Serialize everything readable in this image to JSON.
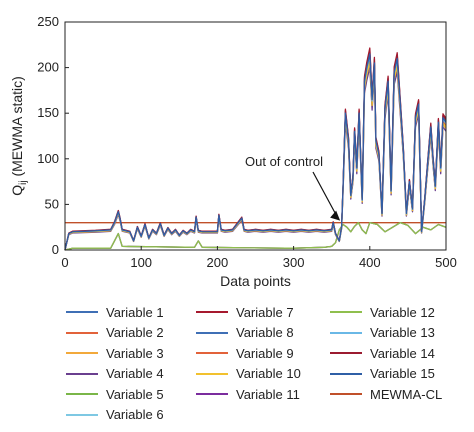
{
  "chart_data": {
    "type": "line",
    "ylabel_main": "Q",
    "ylabel_sub": "ij",
    "ylabel_rest": " (MEWMA static)",
    "xlabel": "Data points",
    "xlim": [
      0,
      500
    ],
    "ylim": [
      0,
      250
    ],
    "xticks": [
      0,
      100,
      200,
      300,
      400,
      500
    ],
    "yticks": [
      0,
      50,
      100,
      150,
      200,
      250
    ],
    "grid": false,
    "legend_placement": "below",
    "annotation": {
      "text": "Out of control",
      "x": 365,
      "y": 30
    },
    "control_limit": {
      "name": "MEWMA-CL",
      "value": 30,
      "color": "#c0502a"
    },
    "high_profile_x": [
      0,
      5,
      10,
      40,
      60,
      65,
      70,
      72,
      75,
      85,
      90,
      95,
      100,
      105,
      110,
      115,
      120,
      125,
      130,
      135,
      140,
      145,
      150,
      155,
      160,
      165,
      170,
      172,
      175,
      180,
      200,
      202,
      205,
      210,
      220,
      232,
      235,
      240,
      250,
      260,
      270,
      280,
      290,
      300,
      310,
      320,
      330,
      340,
      350,
      352,
      355,
      360,
      363,
      365,
      368,
      372,
      375,
      378,
      380,
      383,
      386,
      390,
      393,
      396,
      400,
      403,
      406,
      408,
      412,
      416,
      420,
      424,
      428,
      432,
      436,
      440,
      444,
      448,
      452,
      456,
      460,
      464,
      468,
      472,
      476,
      480,
      483,
      486,
      490,
      493,
      496,
      500
    ],
    "high_profile_y": [
      0,
      18,
      20,
      21,
      22,
      30,
      42,
      35,
      22,
      20,
      10,
      25,
      15,
      28,
      13,
      22,
      18,
      29,
      16,
      24,
      18,
      22,
      16,
      21,
      18,
      22,
      20,
      36,
      21,
      20,
      20,
      38,
      22,
      21,
      22,
      35,
      22,
      21,
      22,
      21,
      22,
      21,
      22,
      21,
      22,
      21,
      22,
      21,
      22,
      30,
      18,
      10,
      25,
      70,
      150,
      120,
      60,
      80,
      130,
      90,
      150,
      55,
      185,
      200,
      215,
      165,
      205,
      120,
      105,
      40,
      155,
      185,
      65,
      195,
      210,
      160,
      110,
      40,
      75,
      45,
      145,
      160,
      20,
      55,
      95,
      135,
      100,
      70,
      140,
      90,
      145,
      140
    ],
    "series": [
      {
        "name": "Variable 1",
        "color": "#3f6fb5",
        "scale": 1.0,
        "offset": 0,
        "low": false
      },
      {
        "name": "Variable 2",
        "color": "#e2623a",
        "scale": 0.97,
        "offset": 0,
        "low": false
      },
      {
        "name": "Variable 3",
        "color": "#f2a93b",
        "scale": 0.95,
        "offset": 0,
        "low": false
      },
      {
        "name": "Variable 4",
        "color": "#6a3f8f",
        "scale": 0.93,
        "offset": 0,
        "low": false
      },
      {
        "name": "Variable 5",
        "color": "#7ab648",
        "scale": 1.0,
        "offset": 0,
        "low": true
      },
      {
        "name": "Variable 6",
        "color": "#7ec8e3",
        "scale": 0.99,
        "offset": 0,
        "low": false
      },
      {
        "name": "Variable 7",
        "color": "#a6192e",
        "scale": 1.03,
        "offset": 0,
        "low": false
      },
      {
        "name": "Variable 8",
        "color": "#3f6fb5",
        "scale": 1.01,
        "offset": 0,
        "low": false
      },
      {
        "name": "Variable 9",
        "color": "#e2623a",
        "scale": 0.98,
        "offset": 0,
        "low": false
      },
      {
        "name": "Variable 10",
        "color": "#f2c12e",
        "scale": 0.96,
        "offset": 0,
        "low": false
      },
      {
        "name": "Variable 11",
        "color": "#7b2c9e",
        "scale": 1.0,
        "offset": 0,
        "low": true
      },
      {
        "name": "Variable 12",
        "color": "#8fbf4d",
        "scale": 1.0,
        "offset": 0,
        "low": true
      },
      {
        "name": "Variable 13",
        "color": "#6ab8e6",
        "scale": 0.99,
        "offset": 0,
        "low": false
      },
      {
        "name": "Variable 14",
        "color": "#9b1b30",
        "scale": 1.02,
        "offset": 0,
        "low": false
      },
      {
        "name": "Variable 15",
        "color": "#2f5fa6",
        "scale": 1.0,
        "offset": 0,
        "low": false
      }
    ],
    "low_profile_x": [
      0,
      10,
      60,
      65,
      70,
      75,
      170,
      175,
      180,
      290,
      300,
      340,
      350,
      355,
      360,
      365,
      370,
      375,
      380,
      385,
      390,
      395,
      400,
      410,
      420,
      430,
      440,
      450,
      460,
      470,
      480,
      490,
      500
    ],
    "low_profile_y": [
      0,
      2,
      2,
      10,
      18,
      4,
      3,
      10,
      3,
      2,
      2,
      3,
      4,
      8,
      22,
      28,
      25,
      20,
      26,
      30,
      22,
      18,
      30,
      28,
      20,
      25,
      30,
      27,
      18,
      25,
      22,
      28,
      25
    ],
    "legend_columns": [
      [
        "Variable 1",
        "Variable 2",
        "Variable 3",
        "Variable 4",
        "Variable 5",
        "Variable 6"
      ],
      [
        "Variable 7",
        "Variable 8",
        "Variable 9",
        "Variable 10",
        "Variable 11"
      ],
      [
        "Variable 12",
        "Variable 13",
        "Variable 14",
        "Variable 15",
        "MEWMA-CL"
      ]
    ]
  }
}
